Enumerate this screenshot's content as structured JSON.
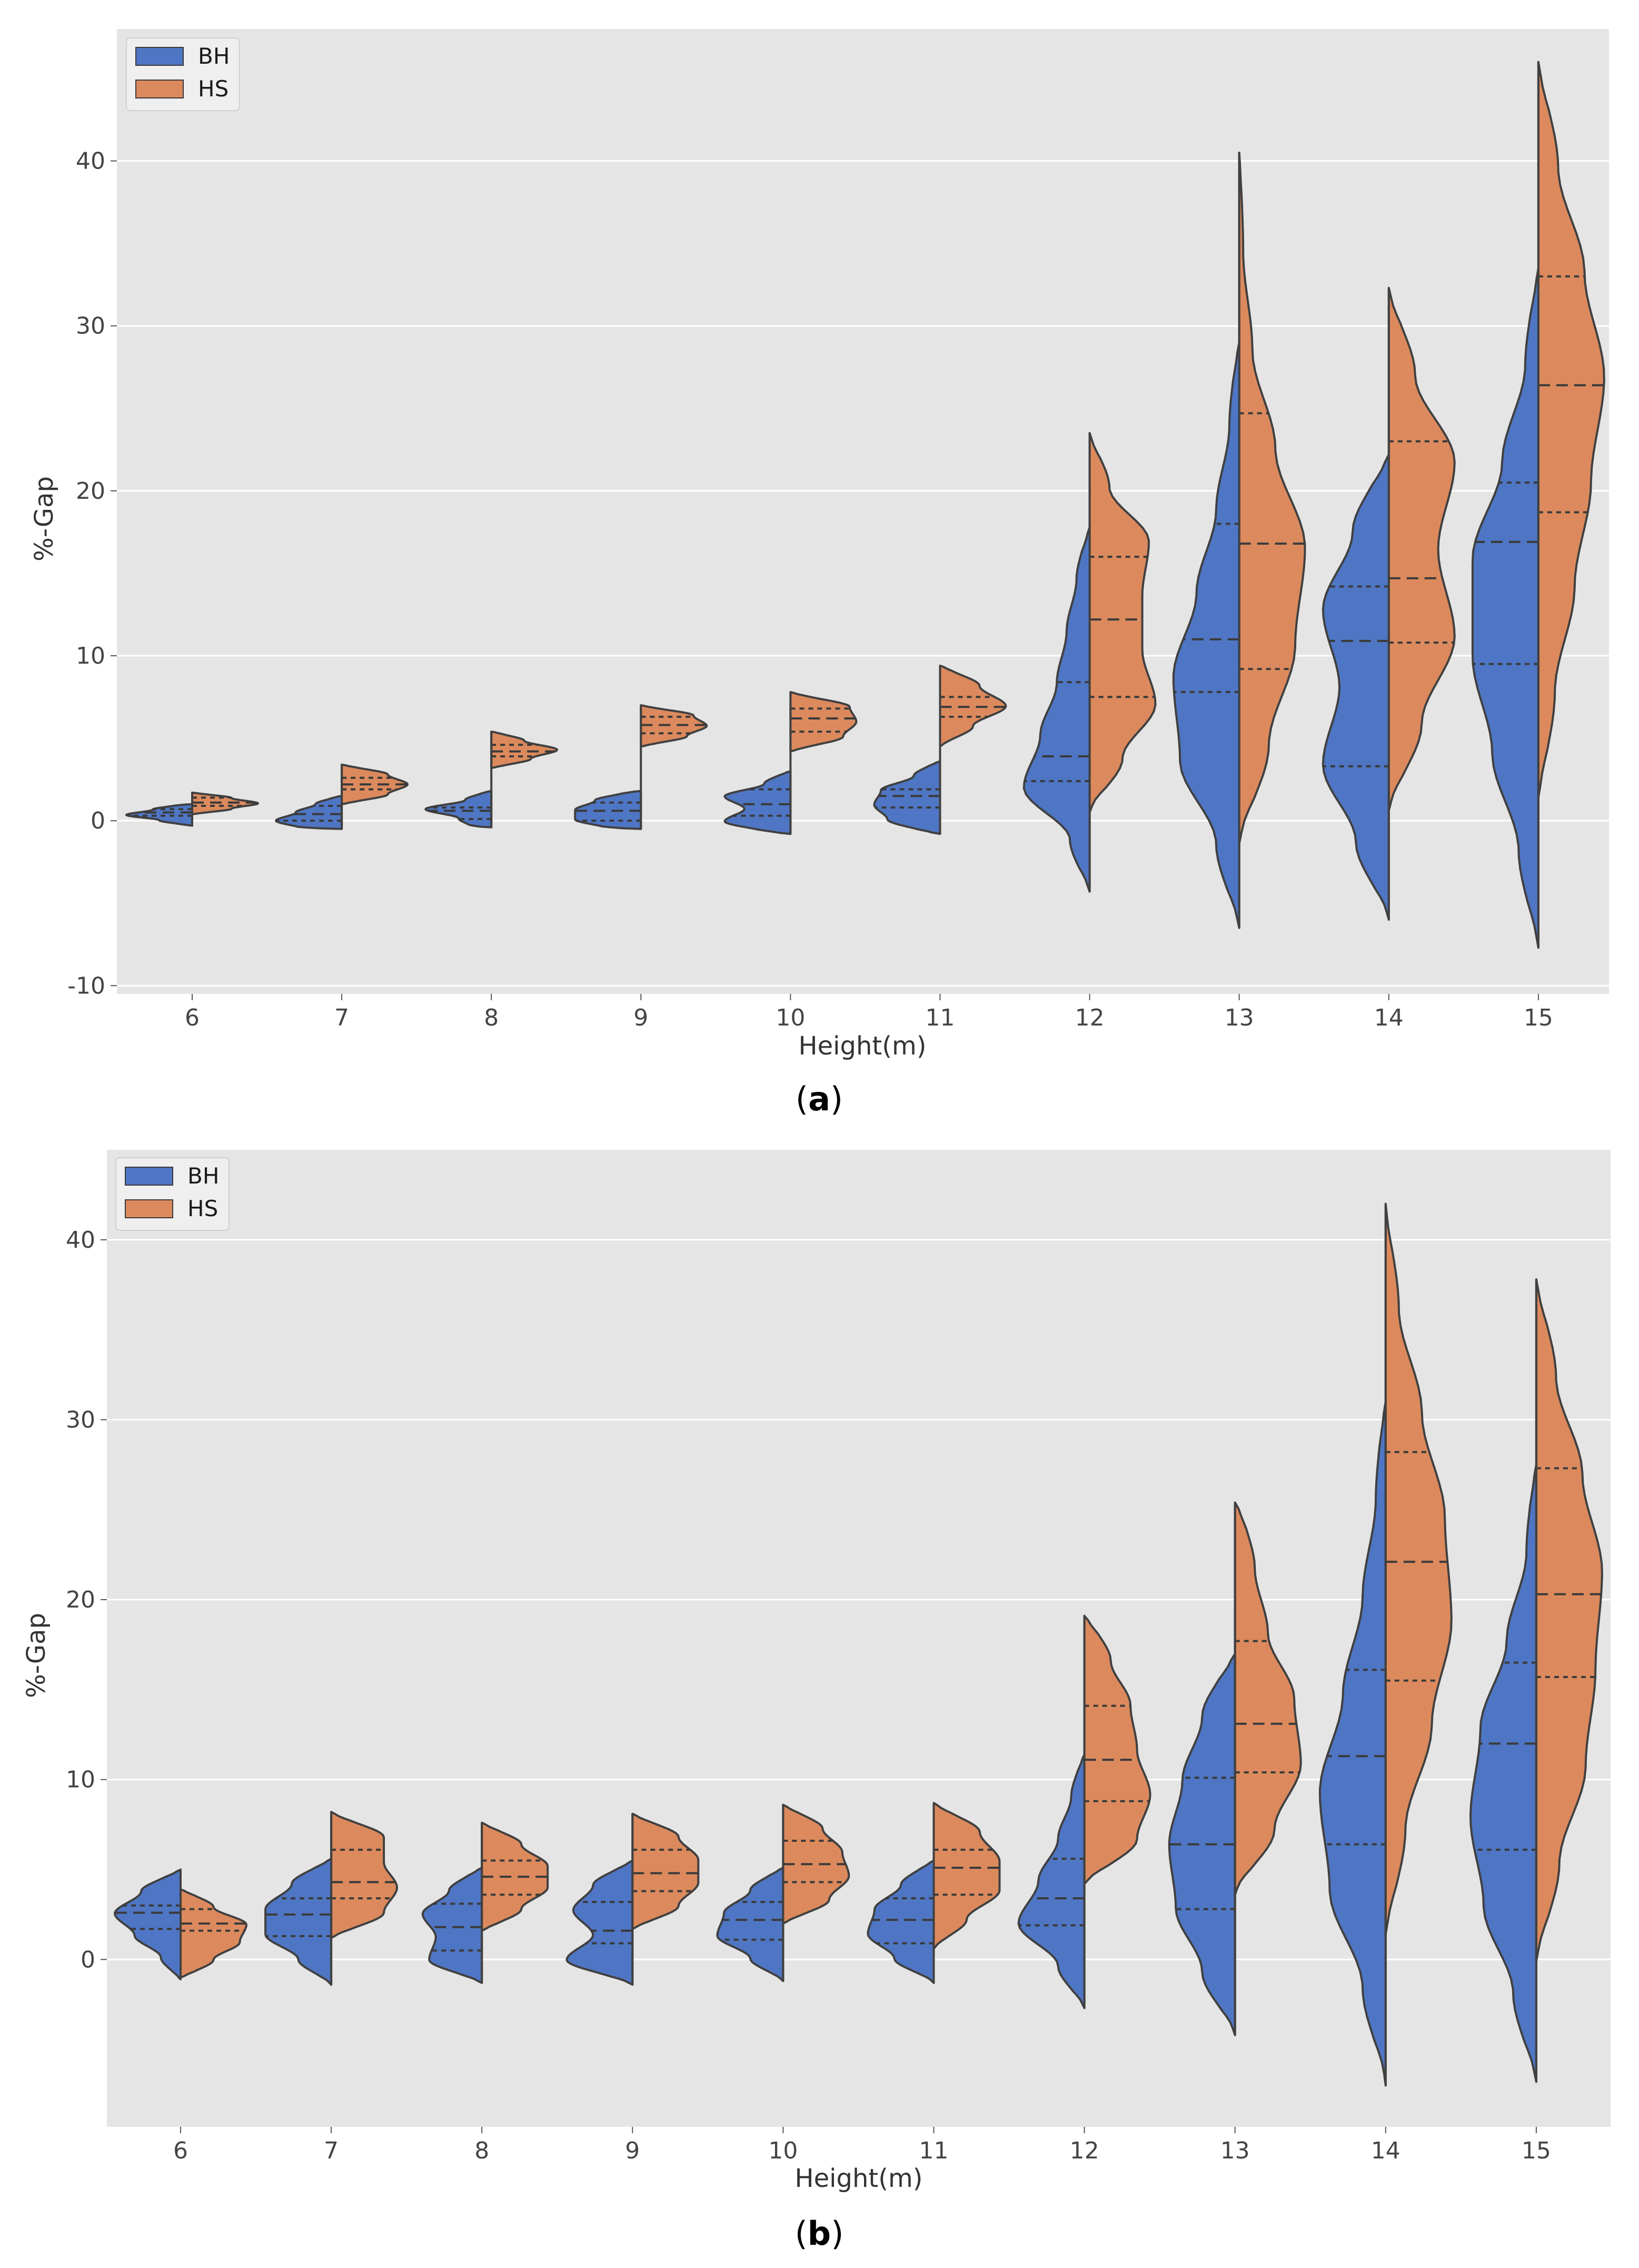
{
  "chart_data": [
    {
      "type": "violin",
      "panel_label": "(a)",
      "panel_letter": "a",
      "xlabel": "Height(m)",
      "ylabel": "%-Gap",
      "ylim": [
        -10.5,
        48
      ],
      "yticks": [
        -10,
        0,
        10,
        20,
        30,
        40
      ],
      "ytick_labels": [
        "-10",
        "0",
        "10",
        "20",
        "30",
        "40"
      ],
      "categories": [
        "6",
        "7",
        "8",
        "9",
        "10",
        "11",
        "12",
        "13",
        "14",
        "15"
      ],
      "legend": {
        "position": "top-left",
        "entries": [
          {
            "name": "BH",
            "color": "#4f76c4"
          },
          {
            "name": "HS",
            "color": "#dc8a5d"
          }
        ]
      },
      "series": [
        {
          "name": "BH",
          "color": "#4f76c4",
          "side": "left",
          "violins": [
            {
              "min": -0.3,
              "max": 1.0,
              "quartiles": [
                0.3,
                0.5,
                0.7
              ],
              "profile": [
                0.1,
                0.5,
                1.0,
                0.6,
                0.2
              ]
            },
            {
              "min": -0.5,
              "max": 1.5,
              "quartiles": [
                0.0,
                0.4,
                0.9
              ],
              "profile": [
                0.6,
                1.0,
                0.7,
                0.4,
                0.1
              ]
            },
            {
              "min": -0.4,
              "max": 1.8,
              "quartiles": [
                0.1,
                0.6,
                0.8
              ],
              "profile": [
                0.3,
                0.5,
                1.0,
                0.4,
                0.1
              ]
            },
            {
              "min": -0.5,
              "max": 1.8,
              "quartiles": [
                0.0,
                0.6,
                1.1
              ],
              "profile": [
                0.5,
                1.0,
                1.0,
                0.7,
                0.2
              ]
            },
            {
              "min": -0.8,
              "max": 3.0,
              "quartiles": [
                0.3,
                1.0,
                1.9
              ],
              "profile": [
                0.3,
                1.0,
                0.7,
                1.0,
                0.4,
                0.1
              ]
            },
            {
              "min": -0.8,
              "max": 3.6,
              "quartiles": [
                0.8,
                1.5,
                1.9
              ],
              "profile": [
                0.2,
                0.8,
                1.0,
                0.9,
                0.4,
                0.1
              ]
            },
            {
              "min": -4.3,
              "max": 17.8,
              "quartiles": [
                2.4,
                3.9,
                8.4
              ],
              "profile": [
                0.05,
                0.3,
                1.0,
                0.75,
                0.5,
                0.35,
                0.2,
                0.05
              ]
            },
            {
              "min": -6.5,
              "max": 29.0,
              "quartiles": [
                7.8,
                11.0,
                18.0
              ],
              "profile": [
                0.05,
                0.35,
                0.9,
                1.0,
                0.65,
                0.35,
                0.15,
                0.05
              ]
            },
            {
              "min": -6.0,
              "max": 22.2,
              "quartiles": [
                3.3,
                10.9,
                14.2
              ],
              "profile": [
                0.05,
                0.5,
                1.0,
                0.75,
                1.0,
                0.55,
                0.1
              ]
            },
            {
              "min": -7.7,
              "max": 33.5,
              "quartiles": [
                9.5,
                16.9,
                20.5
              ],
              "profile": [
                0.05,
                0.3,
                0.7,
                1.0,
                1.0,
                0.55,
                0.2,
                0.05
              ]
            }
          ]
        },
        {
          "name": "HS",
          "color": "#dc8a5d",
          "side": "right",
          "violins": [
            {
              "min": 0.4,
              "max": 1.7,
              "quartiles": [
                0.9,
                1.1,
                1.4
              ],
              "profile": [
                0.1,
                0.6,
                1.0,
                0.6,
                0.1
              ]
            },
            {
              "min": 1.0,
              "max": 3.4,
              "quartiles": [
                1.9,
                2.2,
                2.6
              ],
              "profile": [
                0.1,
                0.7,
                1.0,
                0.7,
                0.1
              ]
            },
            {
              "min": 3.2,
              "max": 5.4,
              "quartiles": [
                3.9,
                4.2,
                4.6
              ],
              "profile": [
                0.1,
                0.6,
                1.0,
                0.5,
                0.1
              ]
            },
            {
              "min": 4.5,
              "max": 7.0,
              "quartiles": [
                5.3,
                5.8,
                6.3
              ],
              "profile": [
                0.1,
                0.7,
                1.0,
                0.8,
                0.1
              ]
            },
            {
              "min": 4.2,
              "max": 7.8,
              "quartiles": [
                5.4,
                6.2,
                6.8
              ],
              "profile": [
                0.1,
                0.8,
                1.0,
                0.9,
                0.1
              ]
            },
            {
              "min": 4.5,
              "max": 9.4,
              "quartiles": [
                6.3,
                6.9,
                7.5
              ],
              "profile": [
                0.05,
                0.5,
                1.0,
                0.6,
                0.1
              ]
            },
            {
              "min": 0.5,
              "max": 23.5,
              "quartiles": [
                7.5,
                12.2,
                16.0
              ],
              "profile": [
                0.05,
                0.5,
                1.0,
                0.8,
                0.8,
                0.9,
                0.3,
                0.05
              ]
            },
            {
              "min": -1.4,
              "max": 40.5,
              "quartiles": [
                9.2,
                16.8,
                24.7
              ],
              "profile": [
                0.05,
                0.45,
                0.85,
                1.0,
                0.55,
                0.2,
                0.06,
                0.02
              ]
            },
            {
              "min": 0.6,
              "max": 32.3,
              "quartiles": [
                10.8,
                14.7,
                23.0
              ],
              "profile": [
                0.05,
                0.5,
                1.0,
                0.75,
                1.0,
                0.4,
                0.05
              ]
            },
            {
              "min": 1.4,
              "max": 46.0,
              "quartiles": [
                18.7,
                26.4,
                33.0
              ],
              "profile": [
                0.05,
                0.25,
                0.55,
                0.8,
                1.0,
                0.7,
                0.3,
                0.05
              ]
            }
          ]
        }
      ]
    },
    {
      "type": "violin",
      "panel_label": "(b)",
      "panel_letter": "b",
      "xlabel": "Height(m)",
      "ylabel": "%-Gap",
      "ylim": [
        -9.3,
        45
      ],
      "yticks": [
        0,
        10,
        20,
        30,
        40
      ],
      "ytick_labels": [
        "0",
        "10",
        "20",
        "30",
        "40"
      ],
      "categories": [
        "6",
        "7",
        "8",
        "9",
        "10",
        "11",
        "12",
        "13",
        "14",
        "15"
      ],
      "legend": {
        "position": "top-left",
        "entries": [
          {
            "name": "BH",
            "color": "#4f76c4"
          },
          {
            "name": "HS",
            "color": "#dc8a5d"
          }
        ]
      },
      "series": [
        {
          "name": "BH",
          "color": "#4f76c4",
          "side": "left",
          "violins": [
            {
              "min": -1.1,
              "max": 5.0,
              "quartiles": [
                1.7,
                2.6,
                3.0
              ],
              "profile": [
                0.05,
                0.3,
                0.7,
                1.0,
                0.6,
                0.1
              ]
            },
            {
              "min": -1.4,
              "max": 5.6,
              "quartiles": [
                1.3,
                2.5,
                3.4
              ],
              "profile": [
                0.05,
                0.5,
                1.0,
                1.0,
                0.6,
                0.1
              ]
            },
            {
              "min": -1.3,
              "max": 5.1,
              "quartiles": [
                0.5,
                1.8,
                3.1
              ],
              "profile": [
                0.1,
                0.8,
                0.7,
                0.9,
                0.5,
                0.1
              ]
            },
            {
              "min": -1.4,
              "max": 5.5,
              "quartiles": [
                0.9,
                1.6,
                3.2
              ],
              "profile": [
                0.1,
                1.0,
                0.6,
                0.9,
                0.6,
                0.1
              ]
            },
            {
              "min": -1.2,
              "max": 5.1,
              "quartiles": [
                1.1,
                2.2,
                3.2
              ],
              "profile": [
                0.05,
                0.5,
                1.0,
                0.9,
                0.5,
                0.1
              ]
            },
            {
              "min": -1.3,
              "max": 5.5,
              "quartiles": [
                0.9,
                2.2,
                3.4
              ],
              "profile": [
                0.05,
                0.6,
                1.0,
                0.9,
                0.5,
                0.1
              ]
            },
            {
              "min": -2.7,
              "max": 11.4,
              "quartiles": [
                1.9,
                3.4,
                5.6
              ],
              "profile": [
                0.05,
                0.4,
                1.0,
                0.7,
                0.4,
                0.2,
                0.05
              ]
            },
            {
              "min": -4.2,
              "max": 17.0,
              "quartiles": [
                2.8,
                6.4,
                10.1
              ],
              "profile": [
                0.05,
                0.5,
                0.9,
                1.0,
                0.8,
                0.5,
                0.1
              ]
            },
            {
              "min": -7.0,
              "max": 31.0,
              "quartiles": [
                6.4,
                11.3,
                16.1
              ],
              "profile": [
                0.03,
                0.35,
                0.85,
                1.0,
                0.65,
                0.35,
                0.15,
                0.05
              ]
            },
            {
              "min": -6.8,
              "max": 27.5,
              "quartiles": [
                6.1,
                12.0,
                16.5
              ],
              "profile": [
                0.05,
                0.35,
                0.8,
                1.0,
                0.85,
                0.45,
                0.15,
                0.05
              ]
            }
          ]
        },
        {
          "name": "HS",
          "color": "#dc8a5d",
          "side": "right",
          "violins": [
            {
              "min": -1.0,
              "max": 3.9,
              "quartiles": [
                1.6,
                2.0,
                2.8
              ],
              "profile": [
                0.1,
                0.5,
                0.9,
                1.0,
                0.5,
                0.1
              ]
            },
            {
              "min": 1.2,
              "max": 8.2,
              "quartiles": [
                3.4,
                4.3,
                6.1
              ],
              "profile": [
                0.1,
                0.8,
                1.0,
                0.8,
                0.8,
                0.1
              ]
            },
            {
              "min": 1.6,
              "max": 7.6,
              "quartiles": [
                3.6,
                4.6,
                5.5
              ],
              "profile": [
                0.1,
                0.6,
                1.0,
                1.0,
                0.6,
                0.1
              ]
            },
            {
              "min": 1.7,
              "max": 8.1,
              "quartiles": [
                3.8,
                4.8,
                6.1
              ],
              "profile": [
                0.1,
                0.7,
                1.0,
                1.0,
                0.7,
                0.1
              ]
            },
            {
              "min": 2.0,
              "max": 8.6,
              "quartiles": [
                4.3,
                5.3,
                6.6
              ],
              "profile": [
                0.1,
                0.7,
                1.0,
                0.9,
                0.6,
                0.1
              ]
            },
            {
              "min": 0.6,
              "max": 8.7,
              "quartiles": [
                3.6,
                5.1,
                6.1
              ],
              "profile": [
                0.05,
                0.5,
                1.0,
                1.0,
                0.7,
                0.1
              ]
            },
            {
              "min": 4.2,
              "max": 19.1,
              "quartiles": [
                8.8,
                11.1,
                14.1
              ],
              "profile": [
                0.1,
                0.8,
                1.0,
                0.8,
                0.7,
                0.4,
                0.1
              ]
            },
            {
              "min": 3.6,
              "max": 25.4,
              "quartiles": [
                10.4,
                13.1,
                17.7
              ],
              "profile": [
                0.05,
                0.6,
                1.0,
                0.9,
                0.5,
                0.3,
                0.1
              ]
            },
            {
              "min": 1.4,
              "max": 42.0,
              "quartiles": [
                15.5,
                22.1,
                28.2
              ],
              "profile": [
                0.05,
                0.3,
                0.7,
                1.0,
                0.9,
                0.55,
                0.2,
                0.03
              ]
            },
            {
              "min": -0.1,
              "max": 37.8,
              "quartiles": [
                15.7,
                20.3,
                27.3
              ],
              "profile": [
                0.05,
                0.35,
                0.75,
                0.9,
                1.0,
                0.7,
                0.3,
                0.05
              ]
            }
          ]
        }
      ]
    }
  ]
}
